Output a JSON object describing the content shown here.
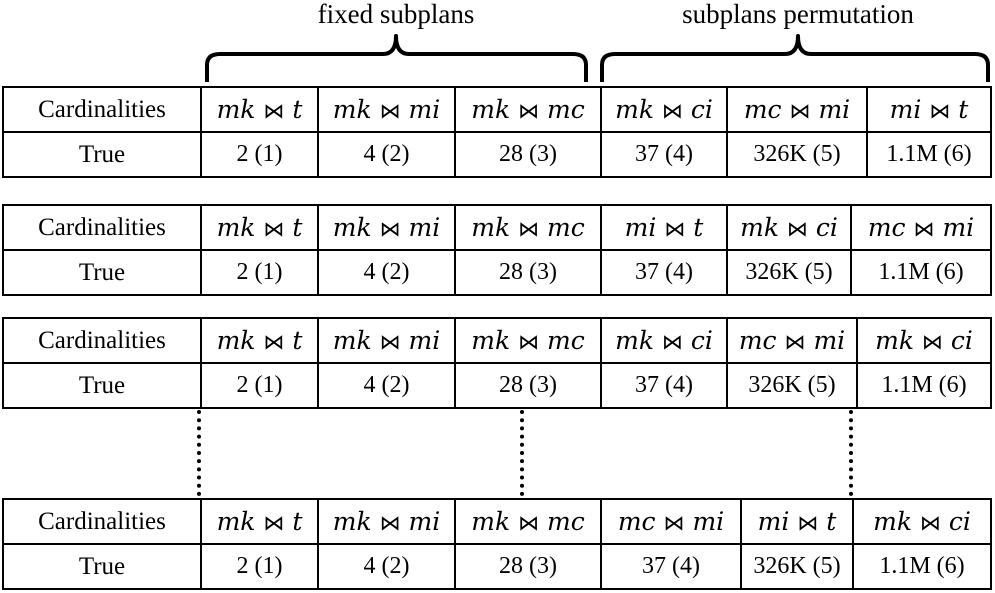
{
  "captions": {
    "fixed": "fixed subplans",
    "permutation": "subplans permutation"
  },
  "join_operator": "⋈",
  "tables": [
    {
      "header_label": "Cardinalities",
      "row_label": "True",
      "joins": [
        {
          "left": "mk",
          "right": "t"
        },
        {
          "left": "mk",
          "right": "mi"
        },
        {
          "left": "mk",
          "right": "mc"
        },
        {
          "left": "mk",
          "right": "ci"
        },
        {
          "left": "mc",
          "right": "mi"
        },
        {
          "left": "mi",
          "right": "t"
        }
      ],
      "values": [
        "2 (1)",
        "4 (2)",
        "28 (3)",
        "37 (4)",
        "326K (5)",
        "1.1M (6)"
      ]
    },
    {
      "header_label": "Cardinalities",
      "row_label": "True",
      "joins": [
        {
          "left": "mk",
          "right": "t"
        },
        {
          "left": "mk",
          "right": "mi"
        },
        {
          "left": "mk",
          "right": "mc"
        },
        {
          "left": "mi",
          "right": "t"
        },
        {
          "left": "mk",
          "right": "ci"
        },
        {
          "left": "mc",
          "right": "mi"
        }
      ],
      "values": [
        "2 (1)",
        "4 (2)",
        "28 (3)",
        "37 (4)",
        "326K (5)",
        "1.1M (6)"
      ]
    },
    {
      "header_label": "Cardinalities",
      "row_label": "True",
      "joins": [
        {
          "left": "mk",
          "right": "t"
        },
        {
          "left": "mk",
          "right": "mi"
        },
        {
          "left": "mk",
          "right": "mc"
        },
        {
          "left": "mk",
          "right": "ci"
        },
        {
          "left": "mc",
          "right": "mi"
        },
        {
          "left": "mk",
          "right": "ci"
        }
      ],
      "values": [
        "2 (1)",
        "4 (2)",
        "28 (3)",
        "37 (4)",
        "326K (5)",
        "1.1M (6)"
      ]
    },
    {
      "header_label": "Cardinalities",
      "row_label": "True",
      "joins": [
        {
          "left": "mk",
          "right": "t"
        },
        {
          "left": "mk",
          "right": "mi"
        },
        {
          "left": "mk",
          "right": "mc"
        },
        {
          "left": "mc",
          "right": "mi"
        },
        {
          "left": "mi",
          "right": "t"
        },
        {
          "left": "mk",
          "right": "ci"
        }
      ],
      "values": [
        "2 (1)",
        "4 (2)",
        "28 (3)",
        "37 (4)",
        "326K (5)",
        "1.1M (6)"
      ]
    }
  ]
}
